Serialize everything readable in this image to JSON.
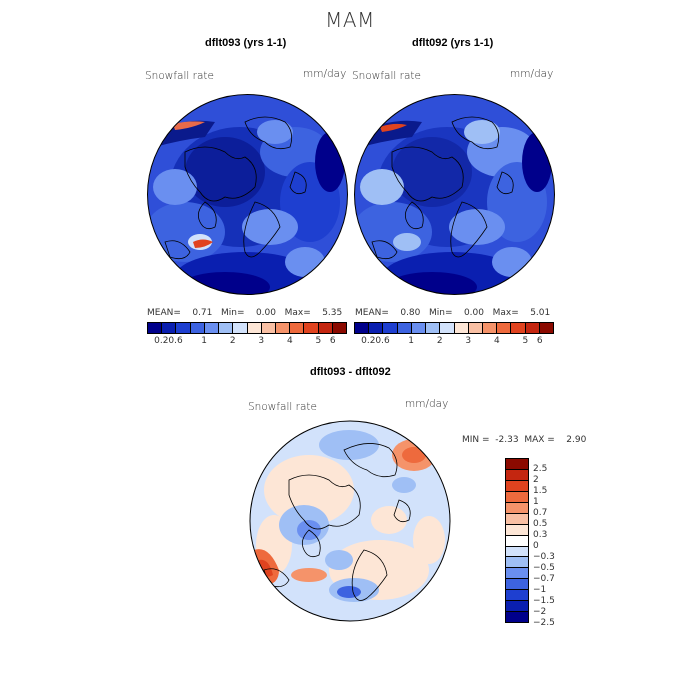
{
  "page_title": "MAM",
  "panels": [
    {
      "title": "dflt093 (yrs 1-1)",
      "variable": "Snowfall rate",
      "units": "mm/day",
      "stats": {
        "mean_label": "MEAN=",
        "mean": "0.71",
        "min_label": "Min=",
        "min": "0.00",
        "max_label": "Max=",
        "max": "5.35"
      }
    },
    {
      "title": "dflt092 (yrs 1-1)",
      "variable": "Snowfall rate",
      "units": "mm/day",
      "stats": {
        "mean_label": "MEAN=",
        "mean": "0.80",
        "min_label": "Min=",
        "min": "0.00",
        "max_label": "Max=",
        "max": "5.01"
      }
    }
  ],
  "abs_colorbar": {
    "colors": [
      "#00008b",
      "#0a1fb0",
      "#1e3fd0",
      "#3d63e0",
      "#6a8ff0",
      "#9fbff5",
      "#d2e2fb",
      "#fde6d6",
      "#f9c0a4",
      "#f5936a",
      "#ee6a3d",
      "#e0431f",
      "#c42610",
      "#8b0a00"
    ],
    "tick_labels": [
      "0.2",
      "0.6",
      "1",
      "2",
      "3",
      "4",
      "5",
      "6"
    ]
  },
  "diff_panel": {
    "title": "dflt093 - dflt092",
    "variable": "Snowfall rate",
    "units": "mm/day",
    "stats": {
      "min_label": "MIN =",
      "min": "-2.33",
      "max_label": "MAX =",
      "max": "2.90"
    },
    "colorbar": {
      "colors": [
        "#8b0a00",
        "#c42610",
        "#e0431f",
        "#ee6a3d",
        "#f5936a",
        "#f9c0a4",
        "#fde6d6",
        "#ffffff",
        "#d2e2fb",
        "#9fbff5",
        "#6a8ff0",
        "#3d63e0",
        "#1e3fd0",
        "#0a1fb0",
        "#00008b"
      ],
      "tick_labels": [
        "2.5",
        "2",
        "1.5",
        "1",
        "0.7",
        "0.5",
        "0.3",
        "0",
        "−0.3",
        "−0.5",
        "−0.7",
        "−1",
        "−1.5",
        "−2",
        "−2.5"
      ]
    }
  }
}
